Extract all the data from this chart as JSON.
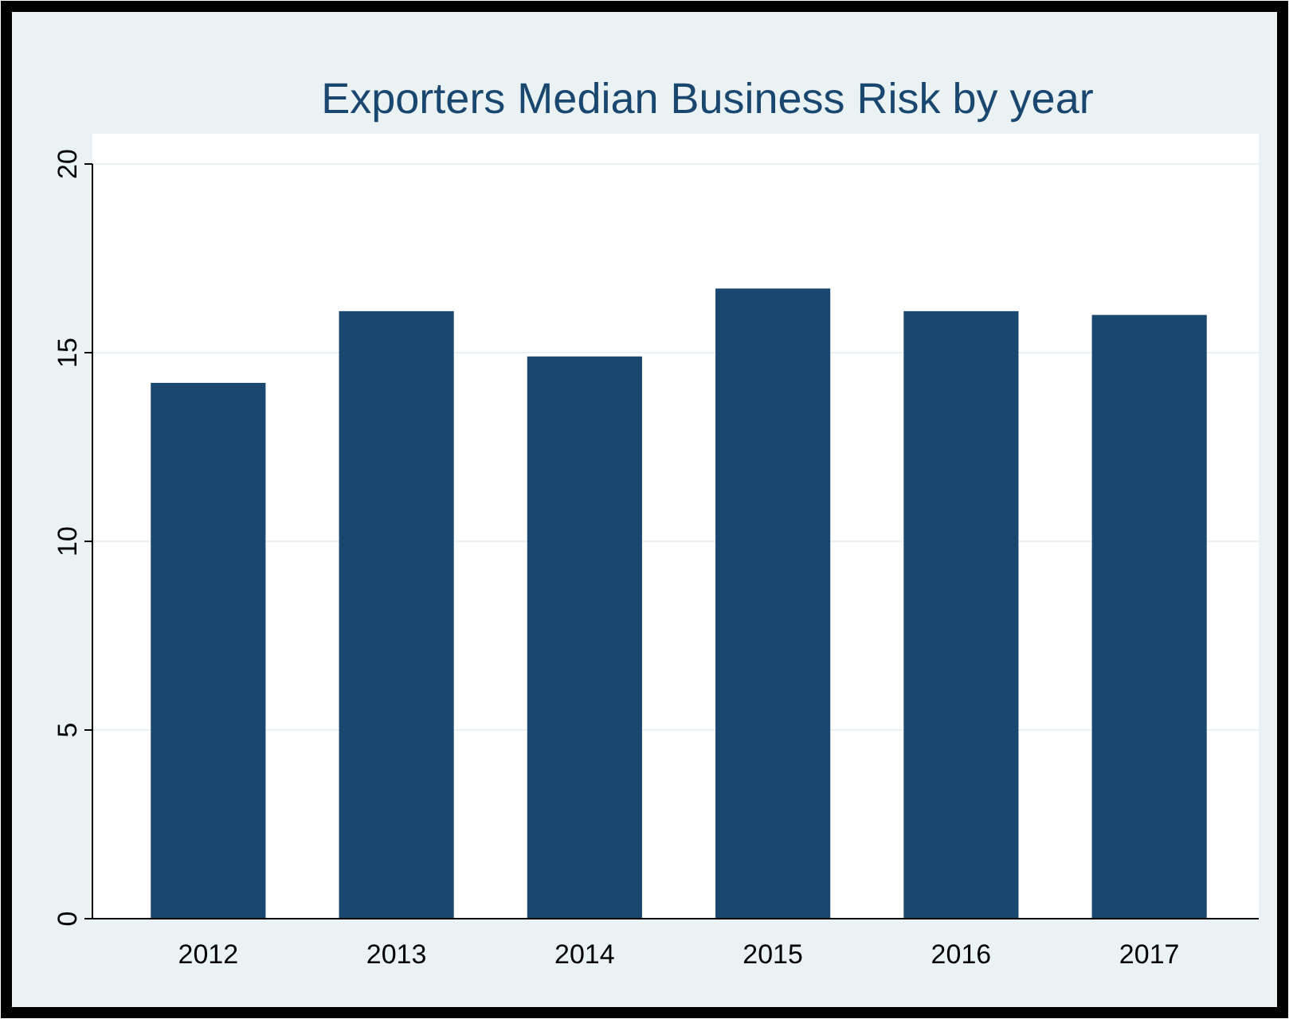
{
  "chart_data": {
    "type": "bar",
    "title": "Exporters Median Business Risk by year",
    "categories": [
      "2012",
      "2013",
      "2014",
      "2015",
      "2016",
      "2017"
    ],
    "values": [
      14.2,
      16.1,
      14.9,
      16.7,
      16.1,
      16.0
    ],
    "color": "#1a476f",
    "ylim": [
      0,
      20
    ],
    "yticks": [
      0,
      5,
      10,
      15,
      20
    ],
    "grid": "y"
  }
}
